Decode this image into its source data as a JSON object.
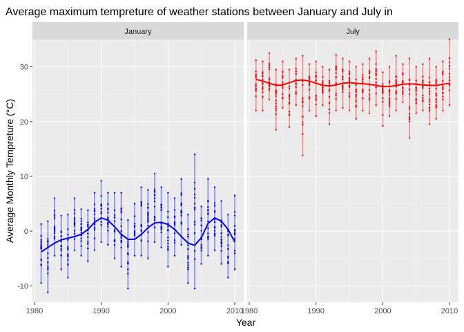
{
  "chart_data": {
    "type": "scatter",
    "title": "Average maximum tempreture of weather stations between January and July in",
    "xlabel": "Year",
    "ylabel": "Average Monthly Tempreture (°C)",
    "xlim": [
      1980,
      2010
    ],
    "ylim": [
      -13,
      35
    ],
    "x_ticks": [
      1980,
      1990,
      2000,
      2010
    ],
    "y_ticks": [
      -10,
      0,
      10,
      20,
      30
    ],
    "grid": true,
    "panels": [
      {
        "name": "January",
        "color": "#0000ff",
        "points_summary": [
          {
            "year": 1981,
            "min": -9.5,
            "max": 1.3
          },
          {
            "year": 1982,
            "min": -11.2,
            "max": 1.8
          },
          {
            "year": 1983,
            "min": -4.5,
            "max": 6.0
          },
          {
            "year": 1984,
            "min": -7.0,
            "max": 2.8
          },
          {
            "year": 1985,
            "min": -8.5,
            "max": 3.0
          },
          {
            "year": 1986,
            "min": -3.5,
            "max": 6.0
          },
          {
            "year": 1987,
            "min": -4.5,
            "max": 4.0
          },
          {
            "year": 1988,
            "min": -5.5,
            "max": 3.8
          },
          {
            "year": 1989,
            "min": -3.5,
            "max": 7.0
          },
          {
            "year": 1990,
            "min": -2.0,
            "max": 9.2
          },
          {
            "year": 1991,
            "min": -2.5,
            "max": 7.0
          },
          {
            "year": 1992,
            "min": -5.0,
            "max": 7.0
          },
          {
            "year": 1993,
            "min": -6.5,
            "max": 7.0
          },
          {
            "year": 1994,
            "min": -10.5,
            "max": 2.0
          },
          {
            "year": 1995,
            "min": -4.5,
            "max": 5.0
          },
          {
            "year": 1996,
            "min": -4.5,
            "max": 8.0
          },
          {
            "year": 1997,
            "min": -5.0,
            "max": 7.5
          },
          {
            "year": 1998,
            "min": -2.0,
            "max": 10.5
          },
          {
            "year": 1999,
            "min": -3.0,
            "max": 8.0
          },
          {
            "year": 2000,
            "min": -6.5,
            "max": 7.0
          },
          {
            "year": 2001,
            "min": -4.5,
            "max": 6.0
          },
          {
            "year": 2002,
            "min": -2.5,
            "max": 9.5
          },
          {
            "year": 2003,
            "min": -9.5,
            "max": 3.0
          },
          {
            "year": 2004,
            "min": -10.5,
            "max": 14.0
          },
          {
            "year": 2005,
            "min": -6.0,
            "max": 4.5
          },
          {
            "year": 2006,
            "min": -4.5,
            "max": 9.5
          },
          {
            "year": 2007,
            "min": -3.5,
            "max": 8.0
          },
          {
            "year": 2008,
            "min": -6.0,
            "max": 5.5
          },
          {
            "year": 2009,
            "min": -8.5,
            "max": 3.0
          },
          {
            "year": 2010,
            "min": -7.0,
            "max": 6.5
          }
        ],
        "smooth": [
          {
            "x": 1981,
            "y": -3.8
          },
          {
            "x": 1982,
            "y": -3.0
          },
          {
            "x": 1983,
            "y": -2.2
          },
          {
            "x": 1984,
            "y": -1.6
          },
          {
            "x": 1985,
            "y": -1.3
          },
          {
            "x": 1986,
            "y": -1.0
          },
          {
            "x": 1987,
            "y": -0.6
          },
          {
            "x": 1988,
            "y": 0.3
          },
          {
            "x": 1989,
            "y": 1.6
          },
          {
            "x": 1990,
            "y": 2.4
          },
          {
            "x": 1991,
            "y": 2.0
          },
          {
            "x": 1992,
            "y": 0.8
          },
          {
            "x": 1993,
            "y": -0.6
          },
          {
            "x": 1994,
            "y": -1.5
          },
          {
            "x": 1995,
            "y": -1.5
          },
          {
            "x": 1996,
            "y": -0.6
          },
          {
            "x": 1997,
            "y": 0.6
          },
          {
            "x": 1998,
            "y": 1.5
          },
          {
            "x": 1999,
            "y": 1.6
          },
          {
            "x": 2000,
            "y": 1.2
          },
          {
            "x": 2001,
            "y": 0.3
          },
          {
            "x": 2002,
            "y": -1.0
          },
          {
            "x": 2003,
            "y": -2.2
          },
          {
            "x": 2004,
            "y": -2.6
          },
          {
            "x": 2005,
            "y": -1.2
          },
          {
            "x": 2006,
            "y": 1.4
          },
          {
            "x": 2007,
            "y": 2.4
          },
          {
            "x": 2008,
            "y": 1.8
          },
          {
            "x": 2009,
            "y": 0.3
          },
          {
            "x": 2010,
            "y": -2.0
          }
        ]
      },
      {
        "name": "July",
        "color": "#ff0000",
        "points_summary": [
          {
            "year": 1981,
            "min": 22.0,
            "max": 31.2
          },
          {
            "year": 1982,
            "min": 22.0,
            "max": 31.0
          },
          {
            "year": 1983,
            "min": 24.0,
            "max": 32.5
          },
          {
            "year": 1984,
            "min": 18.5,
            "max": 29.5
          },
          {
            "year": 1985,
            "min": 22.5,
            "max": 31.0
          },
          {
            "year": 1986,
            "min": 19.0,
            "max": 29.5
          },
          {
            "year": 1987,
            "min": 23.0,
            "max": 31.5
          },
          {
            "year": 1988,
            "min": 13.8,
            "max": 32.0
          },
          {
            "year": 1989,
            "min": 22.0,
            "max": 30.5
          },
          {
            "year": 1990,
            "min": 21.0,
            "max": 31.0
          },
          {
            "year": 1991,
            "min": 23.0,
            "max": 30.0
          },
          {
            "year": 1992,
            "min": 19.5,
            "max": 29.5
          },
          {
            "year": 1993,
            "min": 22.0,
            "max": 32.2
          },
          {
            "year": 1994,
            "min": 22.5,
            "max": 31.5
          },
          {
            "year": 1995,
            "min": 22.0,
            "max": 31.0
          },
          {
            "year": 1996,
            "min": 20.5,
            "max": 30.0
          },
          {
            "year": 1997,
            "min": 22.0,
            "max": 30.5
          },
          {
            "year": 1998,
            "min": 21.5,
            "max": 31.5
          },
          {
            "year": 1999,
            "min": 23.0,
            "max": 32.8
          },
          {
            "year": 2000,
            "min": 19.2,
            "max": 29.0
          },
          {
            "year": 2001,
            "min": 21.0,
            "max": 30.0
          },
          {
            "year": 2002,
            "min": 22.0,
            "max": 32.0
          },
          {
            "year": 2003,
            "min": 23.5,
            "max": 30.5
          },
          {
            "year": 2004,
            "min": 17.0,
            "max": 31.5
          },
          {
            "year": 2005,
            "min": 21.5,
            "max": 30.0
          },
          {
            "year": 2006,
            "min": 22.0,
            "max": 30.5
          },
          {
            "year": 2007,
            "min": 19.5,
            "max": 31.5
          },
          {
            "year": 2008,
            "min": 20.5,
            "max": 30.0
          },
          {
            "year": 2009,
            "min": 22.0,
            "max": 31.0
          },
          {
            "year": 2010,
            "min": 23.0,
            "max": 35.0
          }
        ],
        "smooth": [
          {
            "x": 1981,
            "y": 27.7
          },
          {
            "x": 1982,
            "y": 27.4
          },
          {
            "x": 1983,
            "y": 27.0
          },
          {
            "x": 1984,
            "y": 26.6
          },
          {
            "x": 1985,
            "y": 26.7
          },
          {
            "x": 1986,
            "y": 27.1
          },
          {
            "x": 1987,
            "y": 27.5
          },
          {
            "x": 1988,
            "y": 27.6
          },
          {
            "x": 1989,
            "y": 27.4
          },
          {
            "x": 1990,
            "y": 27.0
          },
          {
            "x": 1991,
            "y": 26.6
          },
          {
            "x": 1992,
            "y": 26.5
          },
          {
            "x": 1993,
            "y": 26.7
          },
          {
            "x": 1994,
            "y": 27.0
          },
          {
            "x": 1995,
            "y": 27.1
          },
          {
            "x": 1996,
            "y": 27.0
          },
          {
            "x": 1997,
            "y": 26.9
          },
          {
            "x": 1998,
            "y": 26.8
          },
          {
            "x": 1999,
            "y": 26.6
          },
          {
            "x": 2000,
            "y": 26.4
          },
          {
            "x": 2001,
            "y": 26.4
          },
          {
            "x": 2002,
            "y": 26.6
          },
          {
            "x": 2003,
            "y": 26.8
          },
          {
            "x": 2004,
            "y": 26.9
          },
          {
            "x": 2005,
            "y": 26.8
          },
          {
            "x": 2006,
            "y": 26.7
          },
          {
            "x": 2007,
            "y": 26.6
          },
          {
            "x": 2008,
            "y": 26.6
          },
          {
            "x": 2009,
            "y": 26.8
          },
          {
            "x": 2010,
            "y": 27.0
          }
        ]
      }
    ]
  }
}
